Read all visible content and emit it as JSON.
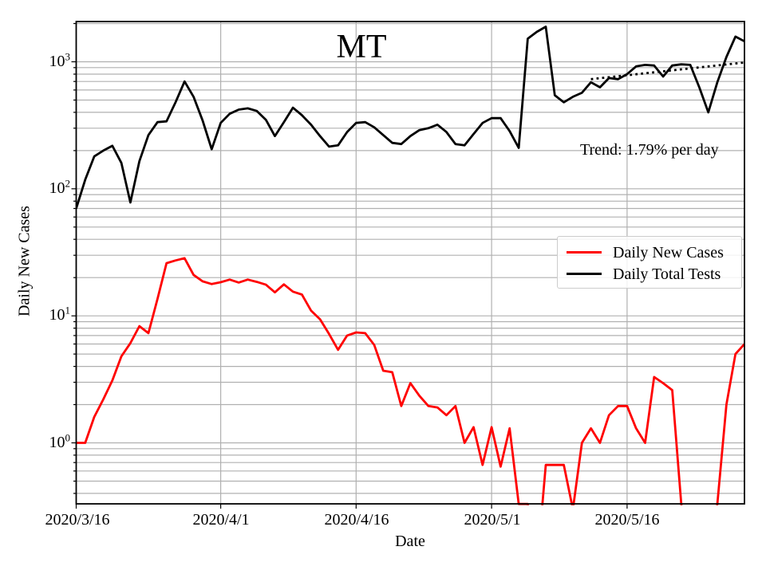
{
  "figure": {
    "title": "MT",
    "xlabel": "Date",
    "ylabel": "Daily New Cases",
    "trend_annotation": "Trend: 1.79% per day",
    "background": "#ffffff"
  },
  "legend": {
    "items": [
      {
        "label": "Daily New Cases",
        "color": "#ff0000"
      },
      {
        "label": "Daily Total Tests",
        "color": "#000000"
      }
    ]
  },
  "chart_data": {
    "type": "line",
    "title": "MT",
    "xlabel": "Date",
    "ylabel": "Daily New Cases",
    "y_scale": "log",
    "grid": true,
    "grid_color": "#b0b0b0",
    "x_start_date": "2020/3/16",
    "x_end_date": "2020/5/29",
    "x_range_days": [
      0,
      74
    ],
    "x_tick_days": [
      0,
      16,
      31,
      46,
      61
    ],
    "x_tick_labels": [
      "2020/3/16",
      "2020/4/1",
      "2020/4/16",
      "2020/5/1",
      "2020/5/16"
    ],
    "y_tick_base": "10",
    "y_tick_exponents": [
      3,
      2,
      1,
      0
    ],
    "ylim": [
      0.33,
      2075
    ],
    "legend_position": "center right",
    "series": [
      {
        "name": "Daily New Cases",
        "color": "#ff0000",
        "values": [
          1.0,
          1.0,
          1.6,
          2.2,
          3.1,
          4.8,
          6.1,
          8.3,
          7.3,
          13.6,
          26.0,
          27.3,
          28.4,
          21.0,
          18.7,
          17.8,
          18.4,
          19.3,
          18.3,
          19.3,
          18.5,
          17.6,
          15.3,
          17.7,
          15.5,
          14.7,
          11.0,
          9.4,
          7.2,
          5.4,
          7.0,
          7.4,
          7.3,
          5.9,
          3.7,
          3.6,
          1.95,
          2.95,
          2.35,
          1.95,
          1.9,
          1.65,
          1.95,
          1.0,
          1.33,
          0.67,
          1.33,
          0.65,
          1.3,
          0.33,
          0.33,
          0.1,
          0.67,
          0.67,
          0.67,
          0.3,
          1.0,
          1.3,
          1.0,
          1.65,
          1.95,
          1.95,
          1.3,
          1.0,
          3.3,
          2.95,
          2.6,
          0.33,
          0.1,
          0.1,
          0.1,
          0.33,
          2.0,
          5.0,
          6.0
        ]
      },
      {
        "name": "Daily Total Tests",
        "color": "#000000",
        "values": [
          70,
          118,
          180,
          200,
          218,
          160,
          78,
          165,
          265,
          335,
          340,
          480,
          700,
          530,
          345,
          205,
          330,
          390,
          420,
          430,
          410,
          350,
          260,
          335,
          435,
          380,
          320,
          260,
          215,
          220,
          280,
          330,
          335,
          305,
          265,
          230,
          225,
          260,
          290,
          300,
          320,
          280,
          225,
          220,
          270,
          330,
          360,
          360,
          285,
          210,
          1520,
          1720,
          1890,
          545,
          480,
          530,
          570,
          690,
          630,
          745,
          730,
          800,
          920,
          945,
          935,
          765,
          935,
          955,
          945,
          630,
          400,
          690,
          1090,
          1580,
          1450
        ]
      }
    ],
    "trend": {
      "label": "Trend: 1.79% per day",
      "pct_per_day": 1.79,
      "start_day": 57,
      "start_value": 730,
      "style": "dotted",
      "color": "#000000"
    }
  }
}
